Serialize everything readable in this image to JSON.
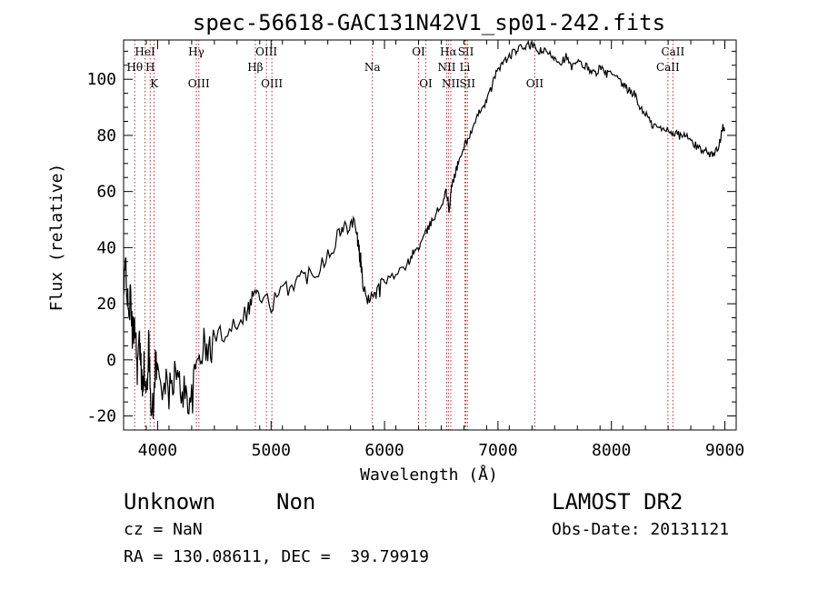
{
  "chart_data": {
    "type": "line",
    "title": "spec-56618-GAC131N42V1_sp01-242.fits",
    "xlabel": "Wavelength (Å)",
    "ylabel": "Flux (relative)",
    "xlim": [
      3700,
      9100
    ],
    "ylim": [
      -25,
      114
    ],
    "x_ticks": [
      4000,
      5000,
      6000,
      7000,
      8000,
      9000
    ],
    "y_ticks": [
      -20,
      0,
      20,
      40,
      60,
      80,
      100
    ],
    "x_minor_step": 200,
    "y_minor_step": 5,
    "line_color": "#000000",
    "marker_line_color": "#b03030",
    "series": [
      {
        "x": [
          3700,
          3720,
          3740,
          3760,
          3780,
          3800,
          3820,
          3840,
          3860,
          3880,
          3900,
          3920,
          3940,
          3960,
          3980,
          4000,
          4050,
          4100,
          4150,
          4200,
          4250,
          4300,
          4350,
          4400,
          4450,
          4500,
          4600,
          4700,
          4800,
          4850,
          4900,
          5000,
          5100,
          5200,
          5300,
          5400,
          5500,
          5600,
          5650,
          5700,
          5750,
          5770,
          5790,
          5800,
          5850,
          5900,
          5950,
          6000,
          6100,
          6200,
          6250,
          6300,
          6350,
          6400,
          6450,
          6500,
          6540,
          6560,
          6570,
          6590,
          6620,
          6650,
          6700,
          6750,
          6800,
          6850,
          6900,
          6950,
          7000,
          7050,
          7100,
          7150,
          7200,
          7250,
          7300,
          7350,
          7400,
          7450,
          7500,
          7550,
          7600,
          7650,
          7700,
          7750,
          7800,
          7850,
          7900,
          7950,
          8000,
          8050,
          8100,
          8150,
          8200,
          8250,
          8300,
          8350,
          8400,
          8450,
          8500,
          8550,
          8600,
          8650,
          8700,
          8750,
          8800,
          8850,
          8900,
          8950,
          8980,
          9000
        ],
        "y": [
          22,
          36,
          15,
          22,
          8,
          14,
          -2,
          6,
          -8,
          -3,
          -15,
          5,
          -12,
          -20,
          0,
          -5,
          -8,
          -12,
          -5,
          -10,
          -12,
          -15,
          0,
          5,
          2,
          8,
          10,
          14,
          18,
          25,
          22,
          20,
          24,
          28,
          30,
          32,
          38,
          45,
          47,
          50,
          48,
          40,
          35,
          30,
          22,
          24,
          25,
          28,
          30,
          34,
          38,
          40,
          44,
          48,
          52,
          55,
          60,
          57,
          52,
          62,
          66,
          70,
          76,
          80,
          84,
          90,
          92,
          98,
          104,
          106,
          108,
          110,
          111,
          112,
          112,
          110,
          110,
          109,
          108,
          106,
          108,
          104,
          106,
          105,
          104,
          102,
          104,
          102,
          102,
          100,
          98,
          96,
          95,
          90,
          88,
          84,
          83,
          82,
          82,
          81,
          80,
          80,
          78,
          76,
          75,
          74,
          73,
          76,
          84,
          82
        ]
      }
    ],
    "line_markers": [
      {
        "label": "Hθ",
        "wavelength": 3798,
        "row": 2
      },
      {
        "label": "HeI",
        "wavelength": 3889,
        "row": 1
      },
      {
        "label": "H",
        "wavelength": 3934,
        "row": 2
      },
      {
        "label": "K",
        "wavelength": 3969,
        "row": 3
      },
      {
        "label": "Hγ",
        "wavelength": 4341,
        "row": 1
      },
      {
        "label": "OIII",
        "wavelength": 4363,
        "row": 3
      },
      {
        "label": "Hβ",
        "wavelength": 4861,
        "row": 2
      },
      {
        "label": "OIII",
        "wavelength": 4959,
        "row": 1
      },
      {
        "label": "OIII",
        "wavelength": 5007,
        "row": 3
      },
      {
        "label": "Na",
        "wavelength": 5893,
        "row": 2
      },
      {
        "label": "OI",
        "wavelength": 6300,
        "row": 1
      },
      {
        "label": "OI",
        "wavelength": 6364,
        "row": 3
      },
      {
        "label": "NII",
        "wavelength": 6548,
        "row": 2
      },
      {
        "label": "Hα",
        "wavelength": 6563,
        "row": 1
      },
      {
        "label": "NII",
        "wavelength": 6584,
        "row": 3
      },
      {
        "label": "SII",
        "wavelength": 6717,
        "row": 1
      },
      {
        "label": "Li",
        "wavelength": 6708,
        "row": 2
      },
      {
        "label": "SII",
        "wavelength": 6731,
        "row": 3
      },
      {
        "label": "OII",
        "wavelength": 7325,
        "row": 3
      },
      {
        "label": "CaII",
        "wavelength": 8542,
        "row": 1
      },
      {
        "label": "CaII",
        "wavelength": 8498,
        "row": 2
      }
    ]
  },
  "footer": {
    "object_class": "Unknown",
    "object_subclass": "Non",
    "survey": "LAMOST DR2",
    "redshift_text": "cz = NaN",
    "obs_date_text": "Obs-Date: 20131121",
    "coords_text": "RA = 130.08611, DEC =  39.79919"
  }
}
